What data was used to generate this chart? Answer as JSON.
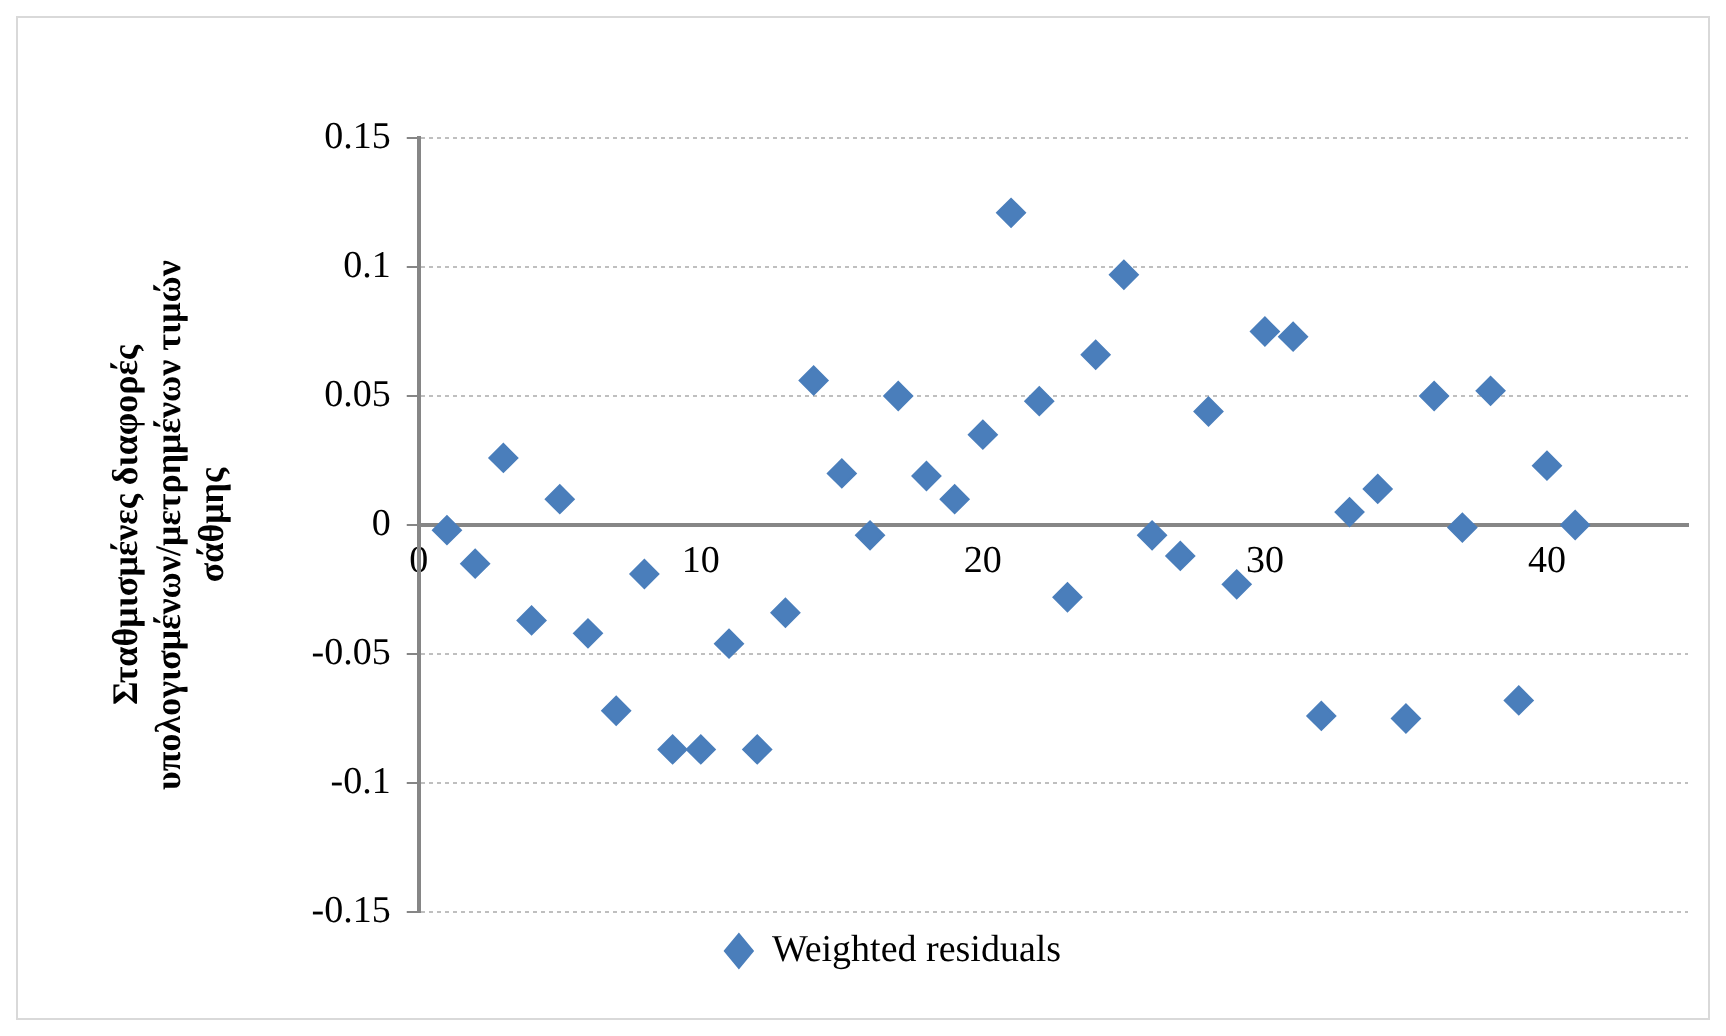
{
  "chart_data": {
    "type": "scatter",
    "ylabel": "Σταθμισμένες διαφορές υπολογισμένων/μετρημένων τιμών σάθμης",
    "x": [
      1,
      2,
      3,
      4,
      5,
      6,
      7,
      8,
      9,
      10,
      11,
      12,
      13,
      14,
      15,
      16,
      17,
      18,
      19,
      20,
      21,
      22,
      23,
      24,
      25,
      26,
      27,
      28,
      29,
      30,
      31,
      32,
      33,
      34,
      35,
      36,
      37,
      38,
      39,
      40,
      41
    ],
    "series": [
      {
        "name": "Weighted residuals",
        "color": "#4a7ebb",
        "values": [
          -0.002,
          -0.015,
          0.026,
          -0.037,
          0.01,
          -0.042,
          -0.072,
          -0.019,
          -0.087,
          -0.087,
          -0.046,
          -0.087,
          -0.034,
          0.056,
          0.02,
          -0.004,
          0.05,
          0.019,
          0.01,
          0.035,
          0.121,
          0.048,
          -0.028,
          0.066,
          0.097,
          -0.004,
          -0.012,
          0.044,
          -0.023,
          0.075,
          0.073,
          -0.074,
          0.005,
          0.014,
          -0.075,
          0.05,
          -0.001,
          0.052,
          -0.068,
          0.023,
          0.0
        ]
      }
    ],
    "xlim": [
      0,
      45
    ],
    "xticks": [
      0,
      10,
      20,
      30,
      40
    ],
    "ylim": [
      -0.15,
      0.15
    ],
    "yticks": [
      -0.15,
      -0.1,
      -0.05,
      0,
      0.05,
      0.1,
      0.15
    ],
    "grid": "y",
    "legend": "bottom",
    "marker": "diamond"
  }
}
